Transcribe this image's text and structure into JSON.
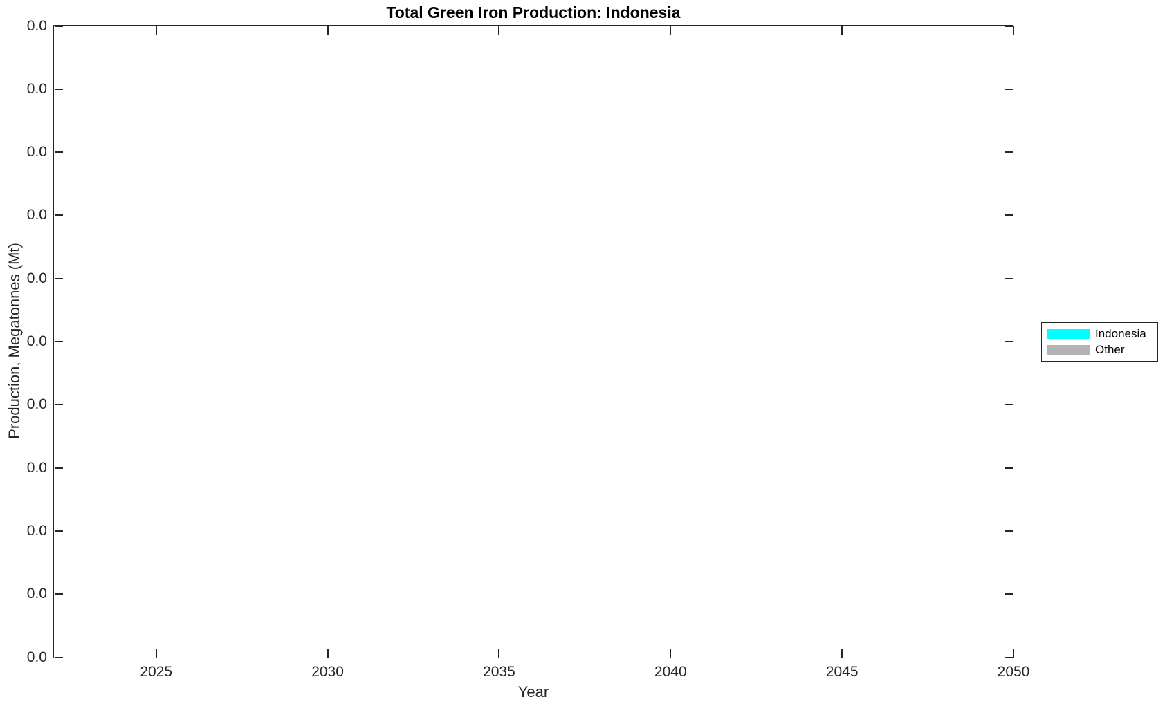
{
  "figure": {
    "background": "#FFFFFF",
    "axis_color": "#262626",
    "title_color": "#000000"
  },
  "chart_data": {
    "type": "area",
    "title": "Total Green Iron Production: Indonesia",
    "xlabel": "Year",
    "ylabel": "Production, Megatonnes (Mt)",
    "x_ticks": [
      2025,
      2030,
      2035,
      2040,
      2045,
      2050
    ],
    "xlim": [
      2022,
      2050
    ],
    "y_tick_labels": [
      "0.0",
      "0.0",
      "0.0",
      "0.0",
      "0.0",
      "0.0",
      "0.0",
      "0.0",
      "0.0",
      "0.0",
      "0.0"
    ],
    "ylim": [
      0.0,
      0.0
    ],
    "grid": false,
    "box": true,
    "tick_direction": "in",
    "legend_position": "outside-right",
    "series": [
      {
        "name": "Indonesia",
        "color": "#00FFFF",
        "values": []
      },
      {
        "name": "Other",
        "color": "#B3B3B3",
        "values": []
      }
    ]
  }
}
